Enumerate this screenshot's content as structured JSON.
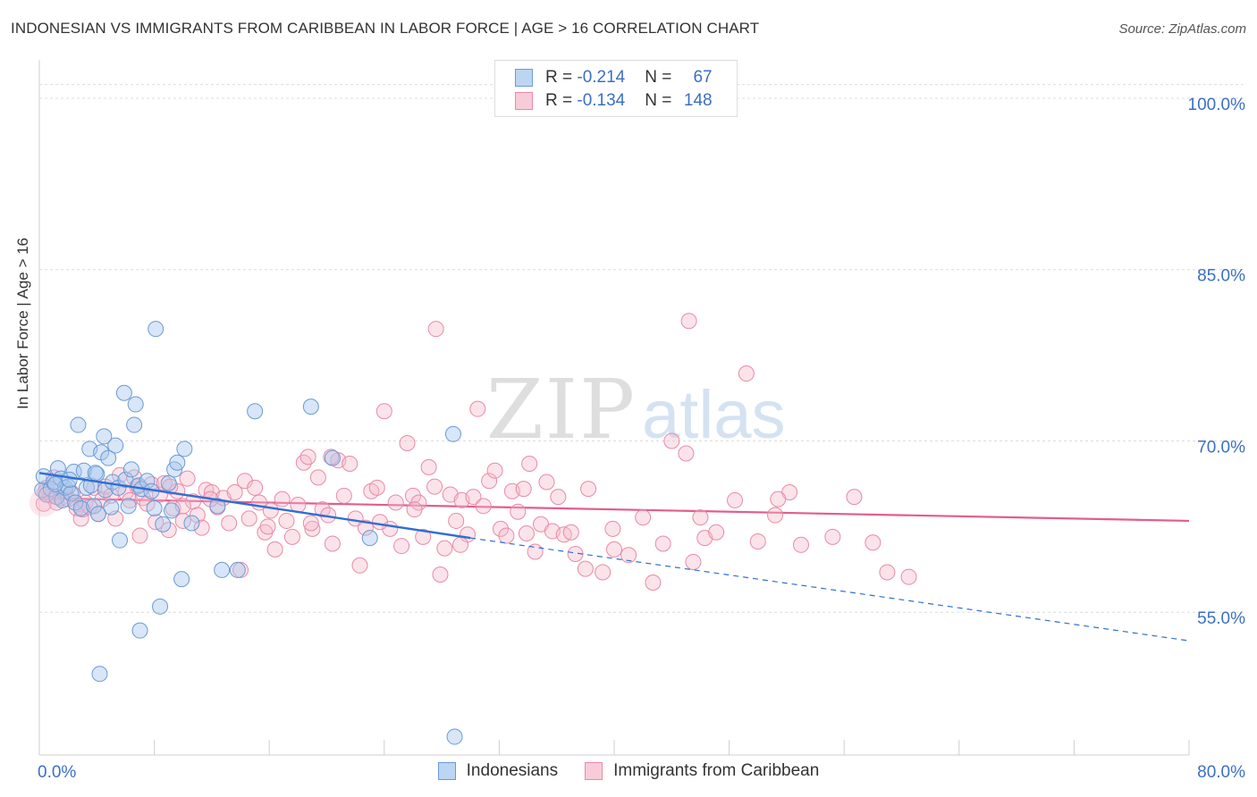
{
  "header": {
    "title": "INDONESIAN VS IMMIGRANTS FROM CARIBBEAN IN LABOR FORCE | AGE > 16 CORRELATION CHART",
    "source": "Source: ZipAtlas.com"
  },
  "watermark": {
    "zip": "ZIP",
    "atlas": "atlas"
  },
  "legend_top": {
    "rows": [
      {
        "r_label": "R = ",
        "r_value": "-0.214",
        "n_label": "N = ",
        "n_value": "67"
      },
      {
        "r_label": "R = ",
        "r_value": "-0.134",
        "n_label": "N = ",
        "n_value": "148"
      }
    ]
  },
  "legend_bottom": [
    "Indonesians",
    "Immigrants from Caribbean"
  ],
  "colors": {
    "blue_fill": "#a9c8ee",
    "blue_stroke": "#6b9ad6",
    "blue_line": "#2f6fd1",
    "pink_fill": "#f5b9cb",
    "pink_stroke": "#e88aa8",
    "pink_line": "#e25d8e",
    "tick_text": "#3b6fc4",
    "grid": "#dcdcdc"
  },
  "chart_data": {
    "type": "scatter",
    "xlabel": "",
    "ylabel": "In Labor Force | Age > 16",
    "xlim": [
      0,
      80
    ],
    "ylim": [
      42.5,
      102.5
    ],
    "x_tick_labels": [
      {
        "value": 0,
        "label": "0.0%"
      },
      {
        "value": 80,
        "label": "80.0%"
      }
    ],
    "y_ticks": [
      {
        "value": 100,
        "label": "100.0%"
      },
      {
        "value": 85,
        "label": "85.0%"
      },
      {
        "value": 70,
        "label": "70.0%"
      },
      {
        "value": 55,
        "label": "55.0%"
      }
    ],
    "grid": "horizontal dashed",
    "series": [
      {
        "name": "Indonesians",
        "color": "#a9c8ee",
        "trend": {
          "x": [
            0,
            30
          ],
          "y": [
            67.2,
            61.5
          ],
          "dashed_extension_to": [
            80,
            52.5
          ]
        },
        "points": [
          [
            0.2,
            65.7
          ],
          [
            0.3,
            66.9
          ],
          [
            0.5,
            65.3
          ],
          [
            0.8,
            65.8
          ],
          [
            1.0,
            66.4
          ],
          [
            1.2,
            65.1
          ],
          [
            1.3,
            67.6
          ],
          [
            1.5,
            66.7
          ],
          [
            1.6,
            64.8
          ],
          [
            1.8,
            65.9
          ],
          [
            2.0,
            66.0
          ],
          [
            2.2,
            65.4
          ],
          [
            2.4,
            67.3
          ],
          [
            2.5,
            64.6
          ],
          [
            2.7,
            71.4
          ],
          [
            2.9,
            64.1
          ],
          [
            3.1,
            67.4
          ],
          [
            3.3,
            65.9
          ],
          [
            3.5,
            69.3
          ],
          [
            3.6,
            66.1
          ],
          [
            3.8,
            64.3
          ],
          [
            4.0,
            67.1
          ],
          [
            4.1,
            63.6
          ],
          [
            4.3,
            69.0
          ],
          [
            4.5,
            70.4
          ],
          [
            4.6,
            65.7
          ],
          [
            4.8,
            68.5
          ],
          [
            5.0,
            64.2
          ],
          [
            5.1,
            66.4
          ],
          [
            5.3,
            69.6
          ],
          [
            5.5,
            65.9
          ],
          [
            5.6,
            61.3
          ],
          [
            5.9,
            74.2
          ],
          [
            6.0,
            66.6
          ],
          [
            6.2,
            64.3
          ],
          [
            6.4,
            67.5
          ],
          [
            6.6,
            71.4
          ],
          [
            6.7,
            73.2
          ],
          [
            6.9,
            66.1
          ],
          [
            7.0,
            53.4
          ],
          [
            7.1,
            65.8
          ],
          [
            7.5,
            66.5
          ],
          [
            7.8,
            65.6
          ],
          [
            8.0,
            64.1
          ],
          [
            8.1,
            79.8
          ],
          [
            8.4,
            55.5
          ],
          [
            8.6,
            62.7
          ],
          [
            9.0,
            66.3
          ],
          [
            9.2,
            63.9
          ],
          [
            9.4,
            67.5
          ],
          [
            9.6,
            68.1
          ],
          [
            9.9,
            57.9
          ],
          [
            10.1,
            69.3
          ],
          [
            10.6,
            62.8
          ],
          [
            12.4,
            64.3
          ],
          [
            12.7,
            58.7
          ],
          [
            13.8,
            58.7
          ],
          [
            15.0,
            72.6
          ],
          [
            18.9,
            73.0
          ],
          [
            20.4,
            68.5
          ],
          [
            23.0,
            61.5
          ],
          [
            28.8,
            70.6
          ],
          [
            28.9,
            44.1
          ],
          [
            4.2,
            49.6
          ],
          [
            2.1,
            66.6
          ],
          [
            3.9,
            67.2
          ],
          [
            1.1,
            66.2
          ]
        ]
      },
      {
        "name": "Immigrants from Caribbean",
        "color": "#f5b9cb",
        "trend": {
          "x": [
            0,
            80
          ],
          "y": [
            65.0,
            63.0
          ]
        },
        "points": [
          [
            0.3,
            64.5
          ],
          [
            0.5,
            65.9
          ],
          [
            0.8,
            65.2
          ],
          [
            1.0,
            66.8
          ],
          [
            1.2,
            64.6
          ],
          [
            1.5,
            65.0
          ],
          [
            1.8,
            65.6
          ],
          [
            2.0,
            64.9
          ],
          [
            2.3,
            65.4
          ],
          [
            2.6,
            64.1
          ],
          [
            2.9,
            63.2
          ],
          [
            3.2,
            64.6
          ],
          [
            3.5,
            64.2
          ],
          [
            3.8,
            65.9
          ],
          [
            4.1,
            63.6
          ],
          [
            4.4,
            64.9
          ],
          [
            4.6,
            66.0
          ],
          [
            5.0,
            65.2
          ],
          [
            5.3,
            63.2
          ],
          [
            5.6,
            67.0
          ],
          [
            6.0,
            65.5
          ],
          [
            6.3,
            64.8
          ],
          [
            6.6,
            66.8
          ],
          [
            7.0,
            61.7
          ],
          [
            7.2,
            65.0
          ],
          [
            7.5,
            64.5
          ],
          [
            7.8,
            66.2
          ],
          [
            8.1,
            62.9
          ],
          [
            8.4,
            65.3
          ],
          [
            8.7,
            66.3
          ],
          [
            9.0,
            62.2
          ],
          [
            9.3,
            64.1
          ],
          [
            9.6,
            65.6
          ],
          [
            10.0,
            63.0
          ],
          [
            10.3,
            66.7
          ],
          [
            10.7,
            64.7
          ],
          [
            11.0,
            63.5
          ],
          [
            11.3,
            62.4
          ],
          [
            11.6,
            65.7
          ],
          [
            12.0,
            65.5
          ],
          [
            12.4,
            64.2
          ],
          [
            12.8,
            65.0
          ],
          [
            13.2,
            62.8
          ],
          [
            13.6,
            65.5
          ],
          [
            14.0,
            58.7
          ],
          [
            14.3,
            66.5
          ],
          [
            14.6,
            63.2
          ],
          [
            15.0,
            65.9
          ],
          [
            15.3,
            64.6
          ],
          [
            15.7,
            62.0
          ],
          [
            16.1,
            63.9
          ],
          [
            16.4,
            60.5
          ],
          [
            16.9,
            64.9
          ],
          [
            17.2,
            63.0
          ],
          [
            17.6,
            61.6
          ],
          [
            18.0,
            64.4
          ],
          [
            18.4,
            68.1
          ],
          [
            18.7,
            68.6
          ],
          [
            19.0,
            62.3
          ],
          [
            19.4,
            66.8
          ],
          [
            19.7,
            64.0
          ],
          [
            20.1,
            63.5
          ],
          [
            20.4,
            61.0
          ],
          [
            20.8,
            68.3
          ],
          [
            21.2,
            65.2
          ],
          [
            21.6,
            68.0
          ],
          [
            22.0,
            63.2
          ],
          [
            22.3,
            59.1
          ],
          [
            22.7,
            62.4
          ],
          [
            23.1,
            65.6
          ],
          [
            23.5,
            65.9
          ],
          [
            24.0,
            72.6
          ],
          [
            24.4,
            62.3
          ],
          [
            24.8,
            64.6
          ],
          [
            25.2,
            60.8
          ],
          [
            25.6,
            69.8
          ],
          [
            26.0,
            65.2
          ],
          [
            26.4,
            64.6
          ],
          [
            26.7,
            61.6
          ],
          [
            27.1,
            67.7
          ],
          [
            27.5,
            66.0
          ],
          [
            27.9,
            58.3
          ],
          [
            28.2,
            60.6
          ],
          [
            28.6,
            65.3
          ],
          [
            29.0,
            63.0
          ],
          [
            29.4,
            64.8
          ],
          [
            29.8,
            61.8
          ],
          [
            30.2,
            65.1
          ],
          [
            30.5,
            72.8
          ],
          [
            30.9,
            64.3
          ],
          [
            31.3,
            66.5
          ],
          [
            31.7,
            67.4
          ],
          [
            32.1,
            62.3
          ],
          [
            32.5,
            61.7
          ],
          [
            32.9,
            65.6
          ],
          [
            33.3,
            63.8
          ],
          [
            33.7,
            65.8
          ],
          [
            34.1,
            68.0
          ],
          [
            34.5,
            60.3
          ],
          [
            34.9,
            62.7
          ],
          [
            35.3,
            66.4
          ],
          [
            35.7,
            62.1
          ],
          [
            36.1,
            65.1
          ],
          [
            36.5,
            61.8
          ],
          [
            37.0,
            62.0
          ],
          [
            37.3,
            60.1
          ],
          [
            38.0,
            58.8
          ],
          [
            38.2,
            65.8
          ],
          [
            39.2,
            58.5
          ],
          [
            39.9,
            62.3
          ],
          [
            41.0,
            60.0
          ],
          [
            42.0,
            63.3
          ],
          [
            42.7,
            57.6
          ],
          [
            43.4,
            61.0
          ],
          [
            45.0,
            68.9
          ],
          [
            45.5,
            59.4
          ],
          [
            46.0,
            63.3
          ],
          [
            46.3,
            61.5
          ],
          [
            47.1,
            62.0
          ],
          [
            48.4,
            64.8
          ],
          [
            49.2,
            75.9
          ],
          [
            50.0,
            61.2
          ],
          [
            51.2,
            63.5
          ],
          [
            52.2,
            65.5
          ],
          [
            53.0,
            60.9
          ],
          [
            55.2,
            61.6
          ],
          [
            56.7,
            65.1
          ],
          [
            58.0,
            61.1
          ],
          [
            59.0,
            58.5
          ],
          [
            60.5,
            58.1
          ],
          [
            45.2,
            80.5
          ],
          [
            27.6,
            79.8
          ],
          [
            10.0,
            64.3
          ],
          [
            18.9,
            62.8
          ],
          [
            51.4,
            64.9
          ],
          [
            44.0,
            70.0
          ],
          [
            3.0,
            64.0
          ],
          [
            6.8,
            66.0
          ],
          [
            11.9,
            64.9
          ],
          [
            15.9,
            62.5
          ],
          [
            20.3,
            68.6
          ],
          [
            23.7,
            62.9
          ],
          [
            29.3,
            60.9
          ],
          [
            33.9,
            61.9
          ],
          [
            40.0,
            60.5
          ],
          [
            0.4,
            65.5
          ],
          [
            9.1,
            66.0
          ],
          [
            26.1,
            64.0
          ]
        ]
      }
    ]
  }
}
